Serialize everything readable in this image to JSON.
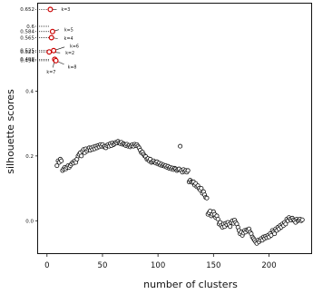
{
  "chart_data": {
    "type": "scatter",
    "title": "",
    "xlabel": "number of clusters",
    "ylabel": "silhouette scores",
    "xlim": [
      -8,
      238
    ],
    "ylim": [
      -0.1,
      0.67
    ],
    "grid": false,
    "legend": "none",
    "x_ticks": [
      {
        "value": 0,
        "label": "0"
      },
      {
        "value": 50,
        "label": "50"
      },
      {
        "value": 100,
        "label": "100"
      },
      {
        "value": 150,
        "label": "150"
      },
      {
        "value": 200,
        "label": "200"
      }
    ],
    "y_ticks": [
      {
        "value": 0.0,
        "label": "0.0"
      },
      {
        "value": 0.2,
        "label": "0.2"
      },
      {
        "value": 0.4,
        "label": "0.4"
      }
    ],
    "highlight_labels": [
      {
        "value": 0.652,
        "label": "0.652"
      },
      {
        "value": 0.6,
        "label": "0.6"
      },
      {
        "value": 0.584,
        "label": "0.584"
      },
      {
        "value": 0.565,
        "label": "0.565"
      },
      {
        "value": 0.525,
        "label": "0.525"
      },
      {
        "value": 0.521,
        "label": "0.521"
      },
      {
        "value": 0.498,
        "label": "0.498"
      },
      {
        "value": 0.494,
        "label": "0.494"
      }
    ],
    "highlighted": [
      {
        "k": 3,
        "x": 3,
        "y": 0.652,
        "label": "k=3"
      },
      {
        "k": 4,
        "x": 4,
        "y": 0.565,
        "label": "k=4"
      },
      {
        "k": 5,
        "x": 5,
        "y": 0.584,
        "label": "k=5"
      },
      {
        "k": 2,
        "x": 2,
        "y": 0.521,
        "label": "k=2"
      },
      {
        "k": 6,
        "x": 6,
        "y": 0.525,
        "label": "k=6"
      },
      {
        "k": 7,
        "x": 7,
        "y": 0.498,
        "label": "k=7"
      },
      {
        "k": 8,
        "x": 8,
        "y": 0.494,
        "label": "k=8"
      }
    ],
    "highlight_color": "#cc0000",
    "series": [
      {
        "values": [
          [
            9,
            0.17
          ],
          [
            10,
            0.185
          ],
          [
            11,
            0.18
          ],
          [
            12,
            0.19
          ],
          [
            13,
            0.185
          ],
          [
            14,
            0.155
          ],
          [
            15,
            0.16
          ],
          [
            16,
            0.165
          ],
          [
            17,
            0.16
          ],
          [
            18,
            0.165
          ],
          [
            19,
            0.17
          ],
          [
            20,
            0.165
          ],
          [
            21,
            0.17
          ],
          [
            22,
            0.175
          ],
          [
            23,
            0.18
          ],
          [
            24,
            0.178
          ],
          [
            25,
            0.185
          ],
          [
            26,
            0.18
          ],
          [
            27,
            0.19
          ],
          [
            28,
            0.2
          ],
          [
            29,
            0.205
          ],
          [
            30,
            0.21
          ],
          [
            31,
            0.2
          ],
          [
            32,
            0.215
          ],
          [
            33,
            0.22
          ],
          [
            34,
            0.21
          ],
          [
            35,
            0.222
          ],
          [
            36,
            0.215
          ],
          [
            37,
            0.22
          ],
          [
            38,
            0.225
          ],
          [
            39,
            0.218
          ],
          [
            40,
            0.225
          ],
          [
            41,
            0.22
          ],
          [
            42,
            0.228
          ],
          [
            43,
            0.222
          ],
          [
            44,
            0.23
          ],
          [
            45,
            0.225
          ],
          [
            46,
            0.232
          ],
          [
            47,
            0.228
          ],
          [
            48,
            0.235
          ],
          [
            49,
            0.23
          ],
          [
            50,
            0.235
          ],
          [
            51,
            0.228
          ],
          [
            52,
            0.23
          ],
          [
            53,
            0.225
          ],
          [
            54,
            0.232
          ],
          [
            55,
            0.235
          ],
          [
            56,
            0.23
          ],
          [
            57,
            0.238
          ],
          [
            58,
            0.232
          ],
          [
            59,
            0.24
          ],
          [
            60,
            0.235
          ],
          [
            61,
            0.238
          ],
          [
            62,
            0.242
          ],
          [
            63,
            0.24
          ],
          [
            64,
            0.245
          ],
          [
            65,
            0.24
          ],
          [
            66,
            0.238
          ],
          [
            67,
            0.242
          ],
          [
            68,
            0.236
          ],
          [
            69,
            0.238
          ],
          [
            70,
            0.235
          ],
          [
            71,
            0.232
          ],
          [
            72,
            0.236
          ],
          [
            73,
            0.23
          ],
          [
            74,
            0.233
          ],
          [
            75,
            0.228
          ],
          [
            76,
            0.232
          ],
          [
            77,
            0.235
          ],
          [
            78,
            0.23
          ],
          [
            79,
            0.236
          ],
          [
            80,
            0.232
          ],
          [
            81,
            0.235
          ],
          [
            82,
            0.23
          ],
          [
            83,
            0.225
          ],
          [
            84,
            0.218
          ],
          [
            85,
            0.21
          ],
          [
            86,
            0.212
          ],
          [
            87,
            0.205
          ],
          [
            88,
            0.2
          ],
          [
            89,
            0.198
          ],
          [
            90,
            0.19
          ],
          [
            91,
            0.192
          ],
          [
            92,
            0.185
          ],
          [
            93,
            0.19
          ],
          [
            94,
            0.18
          ],
          [
            95,
            0.182
          ],
          [
            96,
            0.185
          ],
          [
            97,
            0.18
          ],
          [
            98,
            0.178
          ],
          [
            99,
            0.182
          ],
          [
            100,
            0.175
          ],
          [
            101,
            0.178
          ],
          [
            102,
            0.172
          ],
          [
            103,
            0.175
          ],
          [
            104,
            0.17
          ],
          [
            105,
            0.172
          ],
          [
            106,
            0.168
          ],
          [
            107,
            0.17
          ],
          [
            108,
            0.165
          ],
          [
            109,
            0.168
          ],
          [
            110,
            0.162
          ],
          [
            111,
            0.165
          ],
          [
            112,
            0.16
          ],
          [
            113,
            0.163
          ],
          [
            114,
            0.158
          ],
          [
            115,
            0.162
          ],
          [
            116,
            0.16
          ],
          [
            117,
            0.155
          ],
          [
            118,
            0.158
          ],
          [
            119,
            0.16
          ],
          [
            120,
            0.23
          ],
          [
            121,
            0.155
          ],
          [
            122,
            0.15
          ],
          [
            123,
            0.158
          ],
          [
            124,
            0.152
          ],
          [
            125,
            0.155
          ],
          [
            126,
            0.15
          ],
          [
            127,
            0.155
          ],
          [
            128,
            0.12
          ],
          [
            129,
            0.125
          ],
          [
            130,
            0.12
          ],
          [
            131,
            0.118
          ],
          [
            132,
            0.12
          ],
          [
            133,
            0.11
          ],
          [
            134,
            0.115
          ],
          [
            135,
            0.105
          ],
          [
            136,
            0.108
          ],
          [
            137,
            0.1
          ],
          [
            138,
            0.095
          ],
          [
            139,
            0.1
          ],
          [
            140,
            0.085
          ],
          [
            141,
            0.09
          ],
          [
            142,
            0.08
          ],
          [
            143,
            0.072
          ],
          [
            144,
            0.07
          ],
          [
            145,
            0.02
          ],
          [
            146,
            0.025
          ],
          [
            147,
            0.03
          ],
          [
            148,
            0.015
          ],
          [
            149,
            0.02
          ],
          [
            150,
            0.028
          ],
          [
            151,
            0.02
          ],
          [
            152,
            0.01
          ],
          [
            153,
            0.015
          ],
          [
            154,
            0.005
          ],
          [
            155,
            -0.01
          ],
          [
            156,
            -0.005
          ],
          [
            157,
            -0.015
          ],
          [
            158,
            -0.02
          ],
          [
            159,
            -0.01
          ],
          [
            160,
            -0.018
          ],
          [
            161,
            -0.008
          ],
          [
            162,
            -0.012
          ],
          [
            163,
            -0.005
          ],
          [
            164,
            -0.012
          ],
          [
            165,
            -0.018
          ],
          [
            166,
            -0.005
          ],
          [
            167,
            0.0
          ],
          [
            168,
            -0.008
          ],
          [
            169,
            0.002
          ],
          [
            170,
            -0.005
          ],
          [
            171,
            -0.01
          ],
          [
            172,
            -0.02
          ],
          [
            173,
            -0.03
          ],
          [
            174,
            -0.04
          ],
          [
            175,
            -0.035
          ],
          [
            176,
            -0.045
          ],
          [
            177,
            -0.038
          ],
          [
            178,
            -0.03
          ],
          [
            179,
            -0.035
          ],
          [
            180,
            -0.028
          ],
          [
            181,
            -0.03
          ],
          [
            182,
            -0.025
          ],
          [
            183,
            -0.035
          ],
          [
            184,
            -0.04
          ],
          [
            185,
            -0.05
          ],
          [
            186,
            -0.055
          ],
          [
            187,
            -0.06
          ],
          [
            188,
            -0.065
          ],
          [
            189,
            -0.07
          ],
          [
            190,
            -0.06
          ],
          [
            191,
            -0.065
          ],
          [
            192,
            -0.06
          ],
          [
            193,
            -0.055
          ],
          [
            194,
            -0.06
          ],
          [
            195,
            -0.05
          ],
          [
            196,
            -0.055
          ],
          [
            197,
            -0.048
          ],
          [
            198,
            -0.052
          ],
          [
            199,
            -0.045
          ],
          [
            200,
            -0.05
          ],
          [
            201,
            -0.04
          ],
          [
            202,
            -0.045
          ],
          [
            203,
            -0.03
          ],
          [
            204,
            -0.035
          ],
          [
            205,
            -0.04
          ],
          [
            206,
            -0.025
          ],
          [
            207,
            -0.03
          ],
          [
            208,
            -0.02
          ],
          [
            209,
            -0.025
          ],
          [
            210,
            -0.015
          ],
          [
            211,
            -0.02
          ],
          [
            212,
            -0.01
          ],
          [
            213,
            -0.015
          ],
          [
            214,
            -0.005
          ],
          [
            215,
            -0.01
          ],
          [
            216,
            0.005
          ],
          [
            217,
            0.0
          ],
          [
            218,
            0.01
          ],
          [
            219,
            0.005
          ],
          [
            220,
            0.002
          ],
          [
            221,
            0.008
          ],
          [
            222,
            0.003
          ],
          [
            223,
            0.0
          ],
          [
            224,
            -0.005
          ],
          [
            225,
            0.005
          ],
          [
            226,
            0.0
          ],
          [
            227,
            0.002
          ],
          [
            228,
            0.005
          ],
          [
            229,
            0.0
          ],
          [
            230,
            0.003
          ]
        ]
      }
    ]
  }
}
